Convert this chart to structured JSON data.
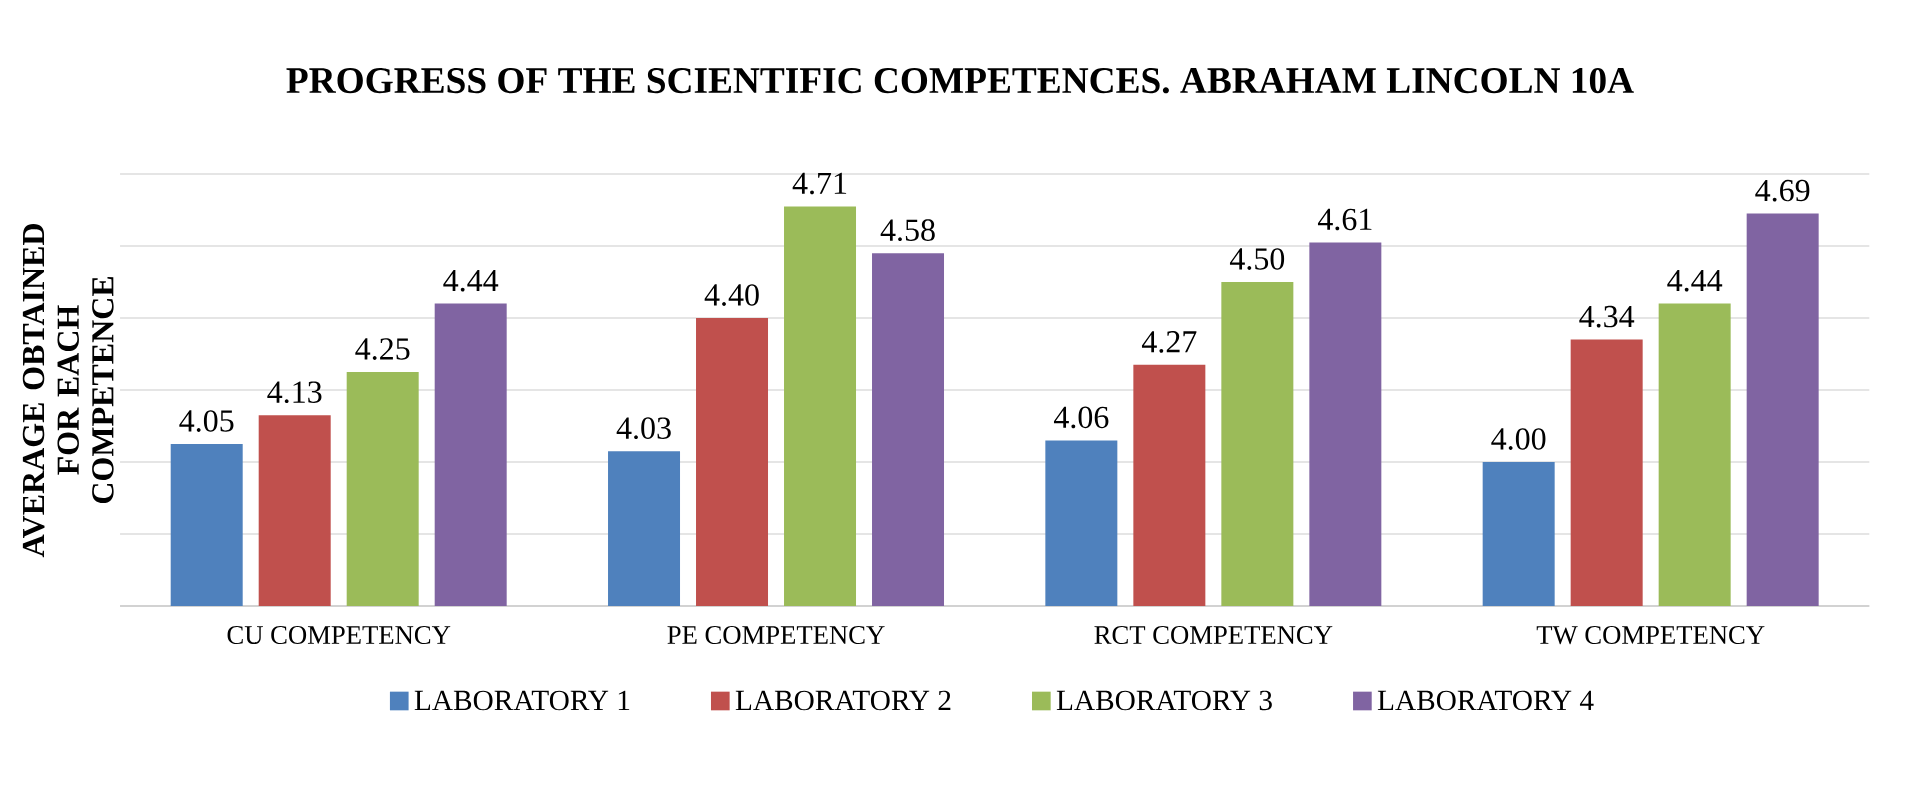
{
  "chart_data": {
    "type": "bar",
    "title": "PROGRESS OF THE SCIENTIFIC COMPETENCES. ABRAHAM LINCOLN 10A",
    "ylabel": "AVERAGE OBTAINED FOR EACH COMPETENCE",
    "categories": [
      "CU COMPETENCY",
      "PE COMPETENCY",
      "RCT COMPETENCY",
      "TW COMPETENCY"
    ],
    "series": [
      {
        "name": "LABORATORY 1",
        "color": "#4f81bd",
        "values": [
          4.05,
          4.03,
          4.06,
          4.0
        ],
        "value_labels": [
          "4.05",
          "4.03",
          "4.06",
          "4.00"
        ]
      },
      {
        "name": "LABORATORY 2",
        "color": "#c0504d",
        "values": [
          4.13,
          4.4,
          4.27,
          4.34
        ],
        "value_labels": [
          "4.13",
          "4.40",
          "4.27",
          "4.34"
        ]
      },
      {
        "name": "LABORATORY 3",
        "color": "#9bbb59",
        "values": [
          4.25,
          4.71,
          4.5,
          4.44
        ],
        "value_labels": [
          "4.25",
          "4.71",
          "4.50",
          "4.44"
        ]
      },
      {
        "name": "LABORATORY 4",
        "color": "#8064a2",
        "values": [
          4.44,
          4.58,
          4.61,
          4.69
        ],
        "value_labels": [
          "4.44",
          "4.58",
          "4.61",
          "4.69"
        ]
      }
    ],
    "ylim": [
      3.6,
      4.8
    ],
    "yticks": [
      {
        "value": 3.6,
        "label": null
      },
      {
        "value": 3.8,
        "label": null
      },
      {
        "value": 4.0,
        "label": null
      },
      {
        "value": 4.2,
        "label": null
      },
      {
        "value": 4.4,
        "label": null
      },
      {
        "value": 4.6,
        "label": null
      },
      {
        "value": 4.8,
        "label": null
      }
    ],
    "tick_labels": "x",
    "grid": "y",
    "legend": "bottom"
  }
}
